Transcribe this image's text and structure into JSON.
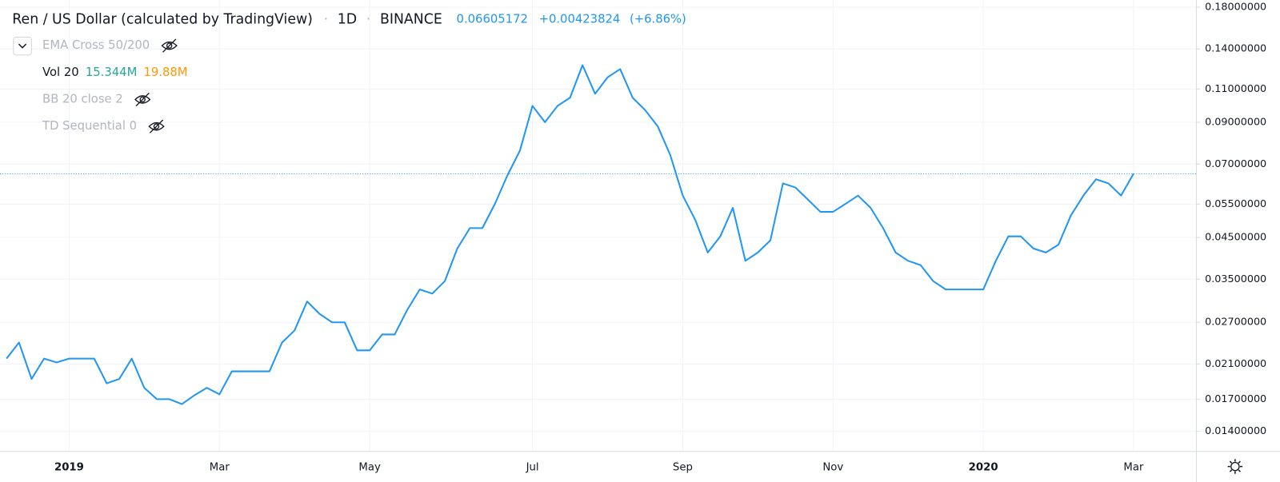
{
  "chart_data": {
    "type": "line",
    "title": "Ren / US Dollar (calculated by TradingView)",
    "interval": "1D",
    "exchange": "BINANCE",
    "last_price": 0.06605172,
    "change": "+0.00423824",
    "change_pct": "(+6.86%)",
    "color": "#2196f3",
    "log_scale": true,
    "grid": true,
    "indicators": [
      {
        "name": "EMA Cross 50/200",
        "hidden": true
      },
      {
        "name": "Vol 20",
        "hidden": false,
        "values": [
          {
            "text": "15.344M",
            "color": "#26a69a"
          },
          {
            "text": "19.88M",
            "color": "#ff9800"
          }
        ]
      },
      {
        "name": "BB 20 close 2",
        "hidden": true
      },
      {
        "name": "TD Sequential 0",
        "hidden": true
      }
    ],
    "categories": [
      null,
      null,
      null,
      null,
      null,
      "2019",
      null,
      null,
      null,
      null,
      null,
      null,
      null,
      null,
      null,
      null,
      null,
      "Mar",
      null,
      null,
      null,
      null,
      null,
      null,
      null,
      null,
      null,
      null,
      null,
      "May",
      null,
      null,
      null,
      null,
      null,
      null,
      null,
      null,
      null,
      null,
      null,
      null,
      "Jul",
      null,
      null,
      null,
      null,
      null,
      null,
      null,
      null,
      null,
      null,
      null,
      "Sep",
      null,
      null,
      null,
      null,
      null,
      null,
      null,
      null,
      null,
      null,
      null,
      "Nov",
      null,
      null,
      null,
      null,
      null,
      null,
      null,
      null,
      null,
      null,
      null,
      "2020",
      null,
      null,
      null,
      null,
      null,
      null,
      null,
      null,
      null,
      null,
      null,
      "Mar"
    ],
    "values": [
      0.0217,
      0.0239,
      0.0192,
      0.0217,
      0.0212,
      0.0217,
      0.0217,
      0.0217,
      0.0187,
      0.0192,
      0.0217,
      0.0182,
      0.017,
      0.017,
      0.0165,
      0.0174,
      0.0182,
      0.0175,
      0.0201,
      0.0201,
      0.0201,
      0.0201,
      0.0239,
      0.0257,
      0.0306,
      0.0284,
      0.027,
      0.027,
      0.0228,
      0.0228,
      0.0251,
      0.0251,
      0.0291,
      0.0329,
      0.0321,
      0.0346,
      0.0421,
      0.0476,
      0.0476,
      0.0551,
      0.0654,
      0.0759,
      0.0994,
      0.0901,
      0.0994,
      0.1044,
      0.127,
      0.1069,
      0.118,
      0.124,
      0.1044,
      0.0969,
      0.0879,
      0.074,
      0.0579,
      0.05,
      0.0411,
      0.0453,
      0.0538,
      0.0391,
      0.0411,
      0.0442,
      0.0623,
      0.0608,
      0.0565,
      0.0525,
      0.0525,
      0.0551,
      0.0579,
      0.0538,
      0.0476,
      0.0411,
      0.0391,
      0.0381,
      0.0346,
      0.0329,
      0.0329,
      0.0329,
      0.0329,
      0.0391,
      0.0453,
      0.0453,
      0.0421,
      0.0411,
      0.0431,
      0.0514,
      0.0579,
      0.0639,
      0.0623,
      0.0579,
      0.0661
    ],
    "ylim": [
      0.01244,
      0.188
    ],
    "yticks": [
      {
        "value": 0.18,
        "label": "0.18000000"
      },
      {
        "value": 0.14,
        "label": "0.14000000"
      },
      {
        "value": 0.11,
        "label": "0.11000000"
      },
      {
        "value": 0.09,
        "label": "0.09000000"
      },
      {
        "value": 0.07,
        "label": "0.07000000"
      },
      {
        "value": 0.055,
        "label": "0.05500000"
      },
      {
        "value": 0.045,
        "label": "0.04500000"
      },
      {
        "value": 0.035,
        "label": "0.03500000"
      },
      {
        "value": 0.027,
        "label": "0.02700000"
      },
      {
        "value": 0.021,
        "label": "0.02100000"
      },
      {
        "value": 0.017,
        "label": "0.01700000"
      },
      {
        "value": 0.014,
        "label": "0.01400000"
      }
    ]
  }
}
